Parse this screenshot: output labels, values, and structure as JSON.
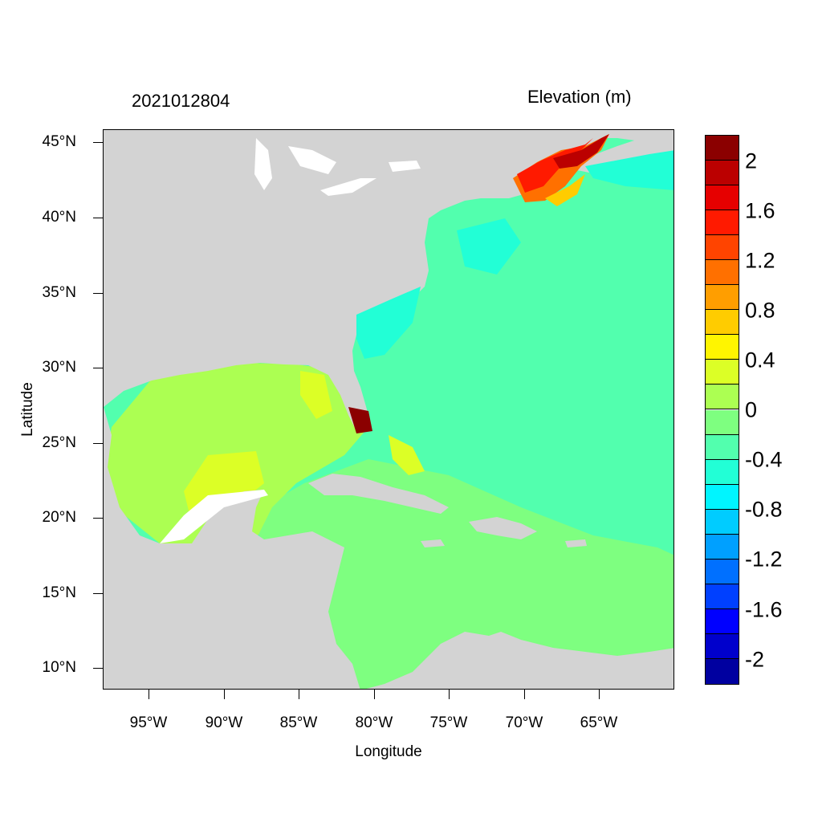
{
  "header": {
    "date_label": "2021012804",
    "variable_label": "Elevation (m)"
  },
  "axes": {
    "xlabel": "Longitude",
    "ylabel": "Latitude",
    "lat_ticks": [
      "45°N",
      "40°N",
      "35°N",
      "30°N",
      "25°N",
      "20°N",
      "15°N",
      "10°N"
    ],
    "lat_values": [
      45,
      40,
      35,
      30,
      25,
      20,
      15,
      10
    ],
    "lon_ticks": [
      "95°W",
      "90°W",
      "85°W",
      "80°W",
      "75°W",
      "70°W",
      "65°W"
    ],
    "lon_values": [
      -95,
      -90,
      -85,
      -80,
      -75,
      -70,
      -65
    ],
    "lon_range": [
      -98,
      -60
    ],
    "lat_range": [
      8.5,
      46
    ]
  },
  "colorbar": {
    "labels": [
      "2",
      "1.6",
      "1.2",
      "0.8",
      "0.4",
      "0",
      "-0.4",
      "-0.8",
      "-1.2",
      "-1.6",
      "-2"
    ],
    "colors_top_to_bottom": [
      "#8b0000",
      "#bb0000",
      "#e60000",
      "#ff1a00",
      "#ff4400",
      "#ff7000",
      "#ff9e00",
      "#ffcc00",
      "#fff500",
      "#dcff26",
      "#acff52",
      "#7eff80",
      "#52ffae",
      "#22ffd6",
      "#00f5ff",
      "#00ccff",
      "#00a0ff",
      "#0070ff",
      "#0040ff",
      "#0000ff",
      "#0000cc",
      "#0000a0"
    ]
  },
  "map": {
    "land_color": "#d3d3d3",
    "lakes_color": "#ffffff",
    "ocean_base_color": "#52ffae"
  }
}
